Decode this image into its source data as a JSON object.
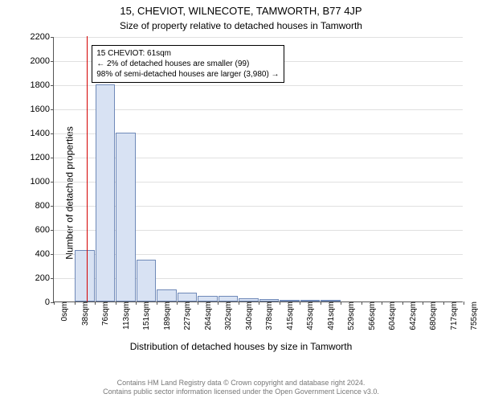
{
  "title": "15, CHEVIOT, WILNECOTE, TAMWORTH, B77 4JP",
  "subtitle": "Size of property relative to detached houses in Tamworth",
  "ylabel": "Number of detached properties",
  "xlabel": "Distribution of detached houses by size in Tamworth",
  "chart": {
    "type": "histogram",
    "ylim": [
      0,
      2200
    ],
    "ytick_step": 200,
    "bar_fill": "#d8e2f3",
    "bar_stroke": "#6f89b8",
    "grid_color": "#e0e0e0",
    "marker_color": "#d40000",
    "categories": [
      "0sqm",
      "38sqm",
      "76sqm",
      "113sqm",
      "151sqm",
      "189sqm",
      "227sqm",
      "264sqm",
      "302sqm",
      "340sqm",
      "378sqm",
      "415sqm",
      "453sqm",
      "491sqm",
      "529sqm",
      "566sqm",
      "604sqm",
      "642sqm",
      "680sqm",
      "717sqm",
      "755sqm"
    ],
    "values": [
      0,
      430,
      1800,
      1400,
      350,
      100,
      75,
      50,
      50,
      30,
      20,
      10,
      10,
      5,
      0,
      0,
      0,
      0,
      0,
      0
    ],
    "marker_x_sqm": 61,
    "x_max_sqm": 755
  },
  "callout": {
    "line1": "15 CHEVIOT: 61sqm",
    "line2": "← 2% of detached houses are smaller (99)",
    "line3": "98% of semi-detached houses are larger (3,980) →"
  },
  "attribution": {
    "line1": "Contains HM Land Registry data © Crown copyright and database right 2024.",
    "line2": "Contains public sector information licensed under the Open Government Licence v3.0."
  }
}
